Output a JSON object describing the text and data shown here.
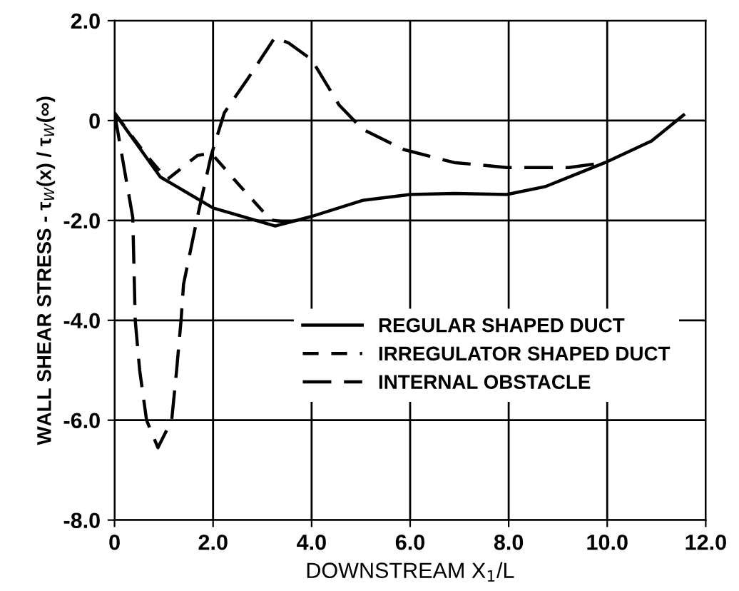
{
  "chart_data": {
    "type": "line",
    "xlabel": "DOWNSTREAM X$_{1}$/L",
    "ylabel": "WALL SHEAR STRESS - τ$_{W}$(x) / τ$_{W}$(∞)",
    "series": [
      {
        "name": "REGULAR SHAPED DUCT",
        "color": "#000000",
        "line_style": "solid",
        "x": [
          0,
          0.93,
          2,
          3.26,
          4,
          5.03,
          6,
          6.9,
          7.96,
          8.75,
          9.96,
          10.9,
          11.55
        ],
        "values": [
          0.15,
          -1.13,
          -1.75,
          -2.11,
          -1.92,
          -1.6,
          -1.48,
          -1.46,
          -1.48,
          -1.32,
          -0.84,
          -0.41,
          0.11
        ]
      },
      {
        "name": "IRREGULATOR SHAPED DUCT",
        "color": "#000000",
        "line_style": "dashed",
        "x": [
          0,
          0.65,
          1.07,
          1.68,
          1.96,
          2.51,
          3.17,
          3.54
        ],
        "values": [
          0.15,
          -0.7,
          -1.18,
          -0.7,
          -0.65,
          -1.27,
          -1.99,
          -2.04
        ]
      },
      {
        "name": "INTERNAL OBSTACLE",
        "color": "#000000",
        "line_style": "dashed",
        "x": [
          0,
          0.37,
          0.42,
          0.51,
          0.65,
          0.88,
          1.16,
          1.26,
          1.35,
          1.4,
          1.68,
          1.96,
          2.23,
          2.7,
          3.26,
          3.54,
          4,
          4.56,
          5.03,
          5.87,
          6.89,
          7.96,
          9.22,
          9.96
        ],
        "values": [
          0.15,
          -1.94,
          -4,
          -5,
          -6,
          -6.55,
          -6,
          -5,
          -4,
          -3.28,
          -1.94,
          -0.7,
          0.16,
          0.83,
          1.67,
          1.55,
          1.22,
          0.31,
          -0.17,
          -0.58,
          -0.84,
          -0.94,
          -0.94,
          -0.84
        ]
      }
    ],
    "xlim": [
      0,
      12
    ],
    "xticks": [
      0,
      {
        "value": 2,
        "label": "2.0"
      },
      {
        "value": 4,
        "label": "4.0"
      },
      {
        "value": 6,
        "label": "6.0"
      },
      {
        "value": 8,
        "label": "8.0"
      },
      {
        "value": 10,
        "label": "10.0"
      },
      {
        "value": 12,
        "label": "12.0"
      }
    ],
    "ylim": [
      -8,
      2
    ],
    "yticks": [
      {
        "value": -8,
        "label": "-8.0"
      },
      {
        "value": -6,
        "label": "-6.0"
      },
      {
        "value": -4,
        "label": "-4.0"
      },
      {
        "value": -2,
        "label": "-2.0"
      },
      0,
      {
        "value": 2,
        "label": "2.0"
      }
    ],
    "grid": true,
    "legend": "center right",
    "marker": "none"
  }
}
